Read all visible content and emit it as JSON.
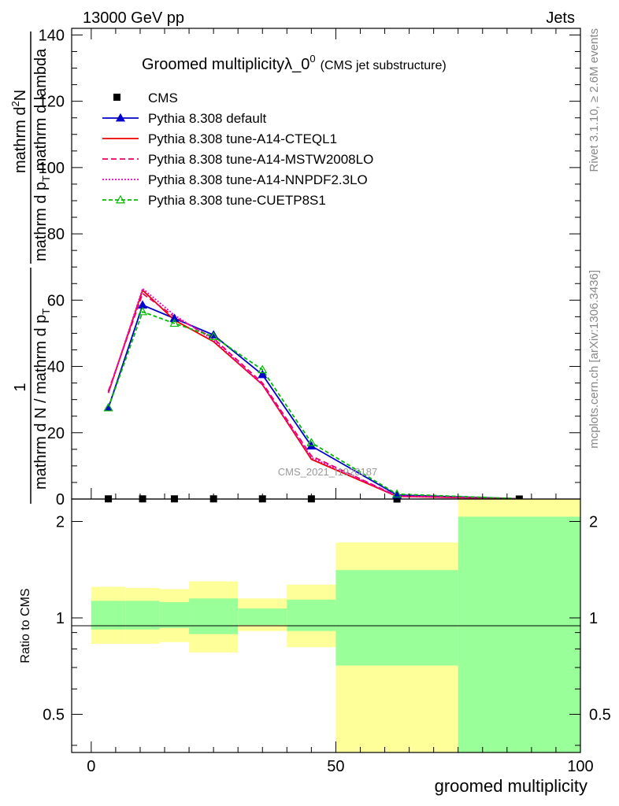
{
  "header": {
    "left": "13000 GeV pp",
    "right": "Jets"
  },
  "title": {
    "main": "Groomed multiplicityλ_0",
    "sup": "0",
    "sub": "(CMS jet substructure)"
  },
  "ylabel_main": {
    "numerator": "1",
    "denominator": "mathrm d N / mathrm d p",
    "denominator_sub": "T",
    "right_num": "mathrm d",
    "right_num_sup": "2",
    "right_num_tail": "N",
    "right_den": "mathrm d p",
    "right_den_sub": "T",
    "right_den_tail": " mathrm d lambda"
  },
  "ylabel_ratio": "Ratio to CMS",
  "xlabel": "groomed multiplicity",
  "side_text_top": "Rivet 3.1.10, ≥ 2.6M events",
  "side_text_bottom": "mcplots.cern.ch [arXiv:1306.3436]",
  "watermark": "CMS_2021_I1920187",
  "main_y_ticks": [
    "0",
    "20",
    "40",
    "60",
    "80",
    "100",
    "120",
    "140"
  ],
  "ratio_y_ticks": [
    "0.5",
    "1",
    "2"
  ],
  "x_ticks": [
    "0",
    "50",
    "100"
  ],
  "colors": {
    "cms": "#000000",
    "default": "#0000cc",
    "a14_cteql1": "#ee0000",
    "a14_mstw": "#ee0066",
    "a14_nnpdf": "#ee00cc",
    "cuetp8s1": "#00bb00",
    "band_inner": "#99ff99",
    "band_outer": "#ffff99"
  },
  "chart_data": {
    "type": "line",
    "title": "Groomed multiplicityλ_0^0 (CMS jet substructure)",
    "xlabel": "groomed multiplicity",
    "xlim": [
      -4,
      100
    ],
    "ylim": [
      0,
      142
    ],
    "ratio_ylim": [
      0.38,
      2.35
    ],
    "ratio_scale": "log",
    "bin_edges": [
      0,
      7,
      14,
      20,
      30,
      40,
      50,
      75,
      100
    ],
    "x": [
      3.5,
      10.5,
      17,
      25,
      35,
      45,
      62.5,
      87.5
    ],
    "series": [
      {
        "name": "CMS",
        "style": "markers",
        "values": [
          0.05,
          0.05,
          0.05,
          0.05,
          0.05,
          0.05,
          0.0,
          0.0
        ]
      },
      {
        "name": "Pythia 8.308 default",
        "style": "solid-triangle",
        "values": [
          27.5,
          58.5,
          54.5,
          49.5,
          37.5,
          16,
          1.2,
          0.1
        ]
      },
      {
        "name": "Pythia 8.308 tune-A14-CTEQL1",
        "style": "solid",
        "values": [
          32,
          63,
          54,
          47.5,
          34.5,
          12,
          0.8,
          0.05
        ]
      },
      {
        "name": "Pythia 8.308 tune-A14-MSTW2008LO",
        "style": "dashed",
        "values": [
          32.5,
          62,
          55,
          48.5,
          35,
          13,
          0.9,
          0.05
        ]
      },
      {
        "name": "Pythia 8.308 tune-A14-NNPDF2.3LO",
        "style": "dotted",
        "values": [
          32,
          63.5,
          55.5,
          48,
          34.5,
          12.5,
          0.9,
          0.05
        ]
      },
      {
        "name": "Pythia 8.308 tune-CUETP8S1",
        "style": "dashed-open-triangle",
        "values": [
          27.5,
          56.5,
          53,
          49,
          39,
          17,
          1.5,
          0.1
        ]
      }
    ],
    "ratio_bands": {
      "inner_low": [
        0.92,
        0.92,
        0.93,
        0.89,
        0.95,
        0.91,
        0.71,
        0.38
      ],
      "inner_high": [
        1.13,
        1.13,
        1.12,
        1.15,
        1.07,
        1.14,
        1.41,
        2.07
      ],
      "outer_low": [
        0.83,
        0.83,
        0.84,
        0.78,
        0.91,
        0.81,
        0.38,
        0.38
      ],
      "outer_high": [
        1.25,
        1.24,
        1.23,
        1.3,
        1.15,
        1.27,
        1.72,
        2.35
      ]
    }
  }
}
